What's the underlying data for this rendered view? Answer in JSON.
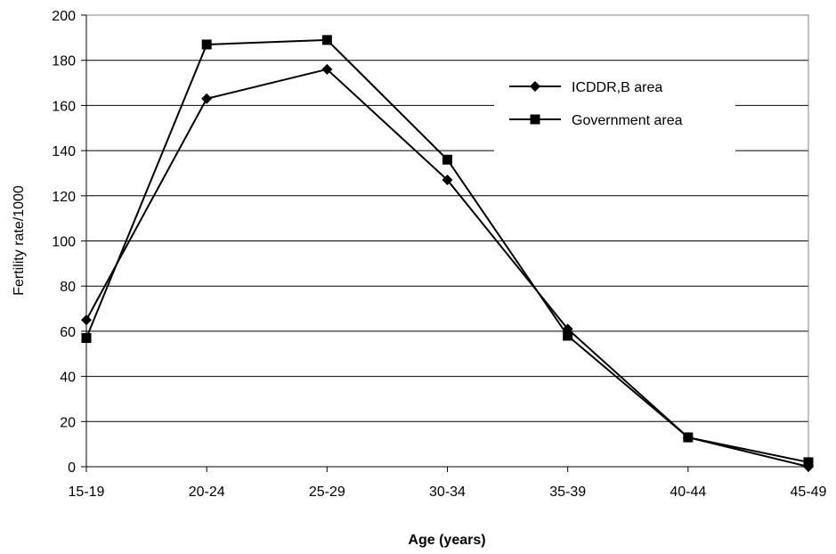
{
  "chart_data": {
    "type": "line",
    "title": "",
    "xlabel": "Age (years)",
    "ylabel": "Fertility rate/1000",
    "categories": [
      "15-19",
      "20-24",
      "25-29",
      "30-34",
      "35-39",
      "40-44",
      "45-49"
    ],
    "ylim": [
      0,
      200
    ],
    "yticks": [
      "0",
      "20",
      "40",
      "60",
      "80",
      "100",
      "120",
      "140",
      "160",
      "180",
      "200"
    ],
    "grid": true,
    "legend_position": "top-right",
    "series": [
      {
        "name": "ICDDR,B area",
        "marker": "diamond",
        "color": "#000000",
        "values": [
          65,
          163,
          176,
          127,
          61,
          13,
          0
        ]
      },
      {
        "name": "Government area",
        "marker": "square",
        "color": "#000000",
        "values": [
          57,
          187,
          189,
          136,
          58,
          13,
          2
        ]
      }
    ]
  }
}
